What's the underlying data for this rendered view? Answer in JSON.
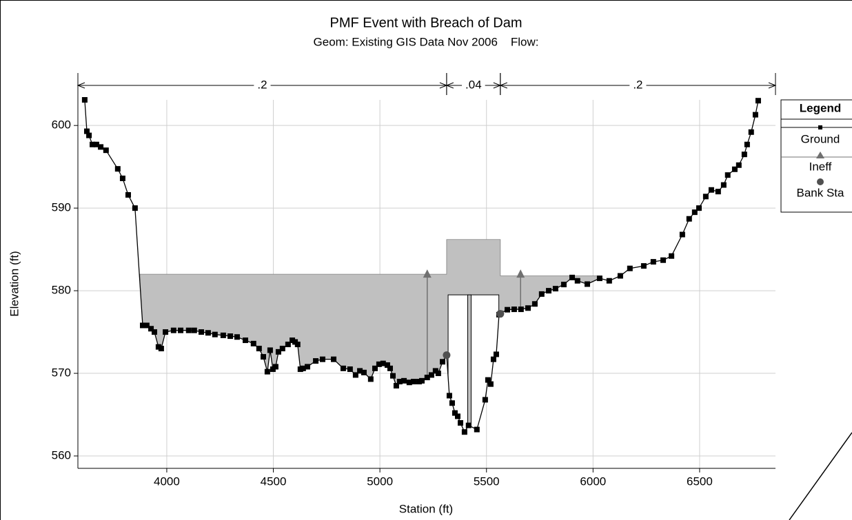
{
  "chart_data": {
    "type": "cross-section",
    "title": "PMF Event with Breach of Dam",
    "subtitle": "Geom: Existing GIS Data Nov 2006    Flow:",
    "x_label": "Station (ft)",
    "y_label": "Elevation (ft)",
    "xlim": [
      3583,
      6856
    ],
    "ylim": [
      558.5,
      603.1
    ],
    "xticks": [
      4000,
      4500,
      5000,
      5500,
      6000,
      6500
    ],
    "yticks": [
      560,
      570,
      580,
      590,
      600
    ],
    "grid": true,
    "legend": "right",
    "legend_title": "Legend",
    "series": [
      {
        "name": "Ground",
        "color": "#000000",
        "marker": "square",
        "x": [
          3615,
          3625,
          3635,
          3651,
          3670,
          3690,
          3715,
          3770,
          3793,
          3819,
          3851,
          3887,
          3906,
          3926,
          3942,
          3961,
          3974,
          3994,
          4032,
          4065,
          4103,
          4129,
          4162,
          4194,
          4226,
          4265,
          4298,
          4330,
          4369,
          4407,
          4433,
          4453,
          4472,
          4485,
          4498,
          4511,
          4524,
          4543,
          4569,
          4589,
          4602,
          4614,
          4627,
          4640,
          4660,
          4699,
          4731,
          4783,
          4828,
          4860,
          4886,
          4906,
          4925,
          4957,
          4977,
          4996,
          5015,
          5035,
          5048,
          5061,
          5077,
          5093,
          5113,
          5138,
          5158,
          5184,
          5197,
          5222,
          5242,
          5261,
          5274,
          5294,
          5313,
          5326,
          5339,
          5352,
          5365,
          5378,
          5397,
          5416,
          5455,
          5494,
          5507,
          5520,
          5533,
          5546,
          5559,
          5565,
          5598,
          5630,
          5662,
          5695,
          5727,
          5759,
          5792,
          5824,
          5863,
          5902,
          5927,
          5973,
          6031,
          6076,
          6128,
          6173,
          6238,
          6283,
          6329,
          6368,
          6419,
          6451,
          6477,
          6497,
          6529,
          6555,
          6587,
          6613,
          6632,
          6665,
          6684,
          6710,
          6723,
          6742,
          6762,
          6775
        ],
        "values": [
          603.1,
          599.3,
          598.8,
          597.7,
          597.7,
          597.4,
          597,
          594.75,
          593.6,
          591.6,
          590,
          575.8,
          575.8,
          575.4,
          575,
          573.2,
          573,
          575,
          575.2,
          575.2,
          575.2,
          575.2,
          575,
          574.9,
          574.7,
          574.6,
          574.5,
          574.4,
          574,
          573.6,
          573,
          572,
          570.2,
          572.8,
          570.5,
          570.8,
          572.6,
          573,
          573.5,
          574,
          573.8,
          573.5,
          570.5,
          570.6,
          570.8,
          571.5,
          571.7,
          571.7,
          570.6,
          570.5,
          569.8,
          570.3,
          570.1,
          569.3,
          570.6,
          571.1,
          571.2,
          571,
          570.6,
          569.7,
          568.5,
          569,
          569.1,
          568.9,
          569,
          569,
          569.1,
          569.5,
          569.8,
          570.3,
          570,
          571.4,
          572.2,
          567.3,
          566.4,
          565.2,
          564.8,
          564,
          562.9,
          563.7,
          563.2,
          566.8,
          569.2,
          568.7,
          571.7,
          572.3,
          577.1,
          577.25,
          577.7,
          577.75,
          577.75,
          577.9,
          578.4,
          579.6,
          580,
          580.25,
          580.75,
          581.6,
          581.2,
          580.8,
          581.5,
          581.2,
          581.8,
          582.7,
          583,
          583.5,
          583.7,
          584.2,
          586.8,
          588.7,
          589.5,
          590,
          591.4,
          592.2,
          592,
          592.8,
          594,
          594.7,
          595.2,
          596.5,
          597.7,
          599.2,
          601.3,
          603
        ]
      },
      {
        "name": "Ineff",
        "color": "#707070",
        "marker": "triangle",
        "x": [
          5222,
          5660
        ],
        "values": [
          582,
          582
        ]
      },
      {
        "name": "Bank Sta",
        "color": "#505050",
        "marker": "circle",
        "x": [
          5313,
          5565
        ],
        "values": [
          572.2,
          577.2
        ]
      }
    ],
    "fills": [
      {
        "start": 3874,
        "end": 5313,
        "elevation": 582
      },
      {
        "start": 5565,
        "end": 6040,
        "elevation": 581.8
      }
    ],
    "bridge": {
      "deck": [
        5313,
        5565
      ],
      "high_chord": 586.2,
      "opening": [
        5320,
        5558
      ],
      "low_chord": 579.5,
      "pier": [
        5412,
        5428
      ]
    },
    "n_values": [
      {
        "label": ".2",
        "start": 3583,
        "end": 5313
      },
      {
        "label": ".04",
        "start": 5313,
        "end": 5565
      },
      {
        "label": ".2",
        "start": 5565,
        "end": 6856
      }
    ]
  }
}
